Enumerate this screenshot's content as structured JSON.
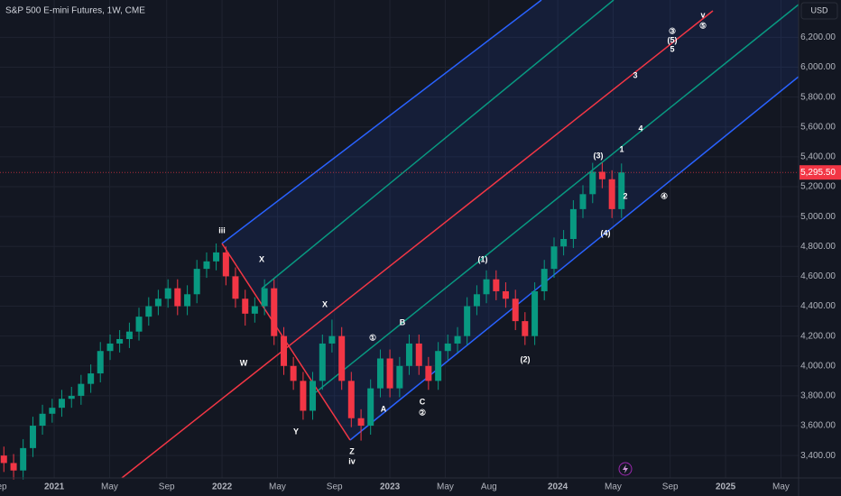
{
  "chart_data": {
    "type": "candlestick",
    "title": "S&P 500 E-mini Futures, 1W, CME",
    "currency": "USD",
    "x": [
      2020.7,
      2020.758,
      2020.815,
      2020.873,
      2020.93,
      2020.988,
      2021.045,
      2021.103,
      2021.16,
      2021.218,
      2021.275,
      2021.333,
      2021.39,
      2021.448,
      2021.505,
      2021.563,
      2021.62,
      2021.678,
      2021.735,
      2021.793,
      2021.85,
      2021.908,
      2021.965,
      2022.023,
      2022.08,
      2022.138,
      2022.195,
      2022.253,
      2022.31,
      2022.368,
      2022.425,
      2022.483,
      2022.54,
      2022.598,
      2022.655,
      2022.713,
      2022.77,
      2022.828,
      2022.885,
      2022.943,
      2023.0,
      2023.058,
      2023.115,
      2023.173,
      2023.23,
      2023.288,
      2023.345,
      2023.403,
      2023.46,
      2023.518,
      2023.575,
      2023.633,
      2023.69,
      2023.748,
      2023.805,
      2023.863,
      2023.92,
      2023.978,
      2024.035,
      2024.093,
      2024.15,
      2024.208,
      2024.265,
      2024.323,
      2024.38
    ],
    "open": [
      3400,
      3350,
      3300,
      3450,
      3600,
      3680,
      3720,
      3780,
      3800,
      3880,
      3950,
      4100,
      4150,
      4180,
      4230,
      4330,
      4400,
      4450,
      4520,
      4400,
      4480,
      4650,
      4700,
      4760,
      4600,
      4450,
      4350,
      4400,
      4520,
      4200,
      4000,
      3900,
      3700,
      3900,
      4150,
      4200,
      3900,
      3650,
      3600,
      3850,
      4050,
      3850,
      4000,
      4150,
      4000,
      3900,
      4100,
      4150,
      4200,
      4400,
      4480,
      4580,
      4500,
      4450,
      4300,
      4200,
      4500,
      4650,
      4800,
      4850,
      5050,
      5150,
      5300,
      5250,
      5050
    ],
    "high": [
      3460,
      3410,
      3510,
      3660,
      3740,
      3780,
      3840,
      3860,
      3940,
      4010,
      4160,
      4210,
      4240,
      4290,
      4390,
      4460,
      4510,
      4580,
      4580,
      4540,
      4710,
      4760,
      4820,
      4800,
      4660,
      4510,
      4460,
      4580,
      4580,
      4260,
      4060,
      3960,
      3960,
      4210,
      4310,
      4260,
      3960,
      3710,
      3910,
      4110,
      4110,
      4060,
      4210,
      4210,
      4060,
      4160,
      4210,
      4260,
      4460,
      4540,
      4640,
      4640,
      4560,
      4510,
      4360,
      4560,
      4710,
      4860,
      4910,
      5110,
      5210,
      5360,
      5360,
      5310,
      5355.5
    ],
    "low": [
      3290,
      3240,
      3240,
      3390,
      3540,
      3620,
      3660,
      3720,
      3740,
      3820,
      3890,
      4040,
      4090,
      4120,
      4170,
      4270,
      4340,
      4390,
      4340,
      4340,
      4420,
      4590,
      4640,
      4540,
      4390,
      4270,
      4290,
      4340,
      4140,
      3940,
      3840,
      3640,
      3640,
      3840,
      4090,
      3840,
      3590,
      3500,
      3540,
      3790,
      3790,
      3790,
      3940,
      3940,
      3840,
      3840,
      4040,
      4090,
      4140,
      4340,
      4420,
      4440,
      4390,
      4240,
      4140,
      4140,
      4440,
      4590,
      4740,
      4790,
      4990,
      5090,
      5190,
      4990,
      4990
    ],
    "close": [
      3350,
      3300,
      3450,
      3600,
      3680,
      3720,
      3780,
      3800,
      3880,
      3950,
      4100,
      4150,
      4180,
      4230,
      4330,
      4400,
      4450,
      4520,
      4400,
      4480,
      4650,
      4700,
      4760,
      4600,
      4450,
      4350,
      4400,
      4520,
      4200,
      4000,
      3900,
      3700,
      3900,
      4150,
      4200,
      3900,
      3650,
      3600,
      3850,
      4050,
      3850,
      4000,
      4150,
      4000,
      3900,
      4100,
      4150,
      4200,
      4400,
      4480,
      4580,
      4500,
      4450,
      4300,
      4200,
      4500,
      4650,
      4800,
      4850,
      5050,
      5150,
      5300,
      5250,
      5050,
      5295.5
    ],
    "up_color": "#089981",
    "down_color": "#f23645",
    "grid": true,
    "xlim": [
      2020.677,
      2025.435
    ],
    "xticks": [
      {
        "value": 2020.67,
        "label": "Sep"
      },
      2021,
      {
        "value": 2021.33,
        "label": "May"
      },
      {
        "value": 2021.67,
        "label": "Sep"
      },
      2022,
      {
        "value": 2022.33,
        "label": "May"
      },
      {
        "value": 2022.67,
        "label": "Sep"
      },
      2023,
      {
        "value": 2023.33,
        "label": "May"
      },
      {
        "value": 2023.59,
        "label": "Aug"
      },
      2024,
      {
        "value": 2024.33,
        "label": "May"
      },
      {
        "value": 2024.67,
        "label": "Sep"
      },
      2025,
      {
        "value": 2025.33,
        "label": "May"
      }
    ],
    "ylim": [
      3250,
      6450
    ],
    "yticks": [
      {
        "value": 3400,
        "label": "3,400.00"
      },
      {
        "value": 3600,
        "label": "3,600.00"
      },
      {
        "value": 3800,
        "label": "3,800.00"
      },
      {
        "value": 4000,
        "label": "4,000.00"
      },
      {
        "value": 4200,
        "label": "4,200.00"
      },
      {
        "value": 4400,
        "label": "4,400.00"
      },
      {
        "value": 4600,
        "label": "4,600.00"
      },
      {
        "value": 4800,
        "label": "4,800.00"
      },
      {
        "value": 5000,
        "label": "5,000.00"
      },
      {
        "value": 5200,
        "label": "5,200.00"
      },
      {
        "value": 5400,
        "label": "5,400.00"
      },
      {
        "value": 5600,
        "label": "5,600.00"
      },
      {
        "value": 5800,
        "label": "5,800.00"
      },
      {
        "value": 6000,
        "label": "6,000.00"
      },
      {
        "value": 6200,
        "label": "6,200.00"
      }
    ],
    "last_price": {
      "value": 5295.5,
      "label": "5,295.50"
    },
    "annotations": [
      "iii",
      "X",
      "W",
      "X",
      "Y",
      "Z",
      "iv",
      "①",
      "B",
      "A",
      "C",
      "②",
      "(1)",
      "(2)",
      "(3)",
      "(4)",
      "1",
      "2",
      "4",
      "④",
      "3",
      "③",
      "(5)",
      "5",
      "v",
      "⑤"
    ]
  }
}
